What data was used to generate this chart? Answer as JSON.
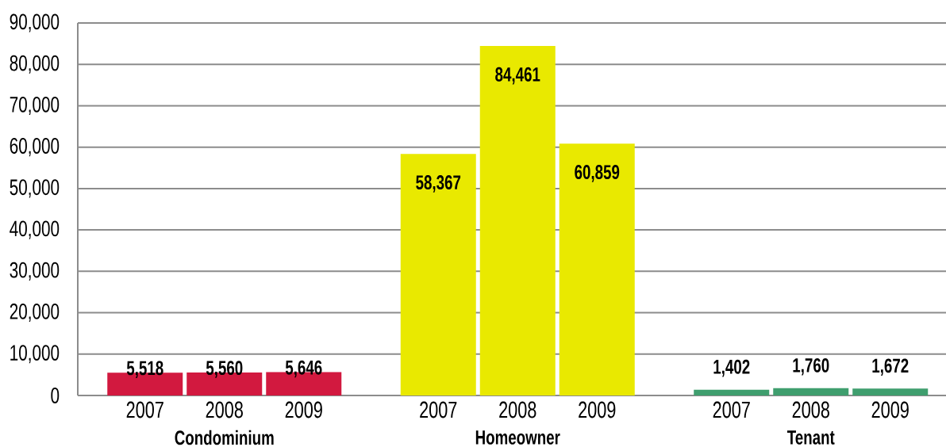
{
  "chart_data": {
    "type": "bar",
    "categories": [
      "Condominium",
      "Homeowner",
      "Tenant"
    ],
    "series": [
      {
        "name": "2007",
        "colors": [
          "#d2193f",
          "#e9e900",
          "#3f9e6e"
        ],
        "values": [
          5518,
          58367,
          1402
        ],
        "value_labels": [
          "5,518",
          "58,367",
          "1,402"
        ]
      },
      {
        "name": "2008",
        "colors": [
          "#d2193f",
          "#e9e900",
          "#3f9e6e"
        ],
        "values": [
          5560,
          84461,
          1760
        ],
        "value_labels": [
          "5,560",
          "84,461",
          "1,760"
        ]
      },
      {
        "name": "2009",
        "colors": [
          "#d2193f",
          "#e9e900",
          "#3f9e6e"
        ],
        "values": [
          5646,
          60859,
          1672
        ],
        "value_labels": [
          "5,646",
          "60,859",
          "1,672"
        ]
      }
    ],
    "ylim": [
      0,
      90000
    ],
    "yticks": [
      0,
      {
        "value": 10000,
        "label": "10,000"
      },
      {
        "value": 20000,
        "label": "20,000"
      },
      {
        "value": 30000,
        "label": "30,000"
      },
      {
        "value": 40000,
        "label": "40,000"
      },
      {
        "value": 50000,
        "label": "50,000"
      },
      {
        "value": 60000,
        "label": "60,000"
      },
      {
        "value": 70000,
        "label": "70,000"
      },
      {
        "value": 80000,
        "label": "80,000"
      },
      {
        "value": 90000,
        "label": "90,000"
      }
    ],
    "grid": "y"
  }
}
